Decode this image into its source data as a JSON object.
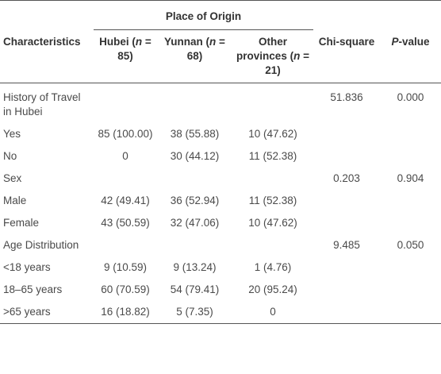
{
  "table": {
    "group_header": "Place of Origin",
    "columns": [
      [
        {
          "text": "Characteristics"
        }
      ],
      [
        {
          "text": "Hubei ("
        },
        {
          "text": "n",
          "italic": true
        },
        {
          "text": " = 85)"
        }
      ],
      [
        {
          "text": "Yunnan ("
        },
        {
          "text": "n",
          "italic": true
        },
        {
          "text": " = 68)"
        }
      ],
      [
        {
          "text": "Other provinces ("
        },
        {
          "text": "n",
          "italic": true
        },
        {
          "text": " = 21)"
        }
      ],
      [
        {
          "text": "Chi-square"
        }
      ],
      [
        {
          "text": "P",
          "italic": true
        },
        {
          "text": "-value"
        }
      ]
    ],
    "rows": [
      [
        "History of Travel in Hubei",
        null,
        null,
        null,
        "51.836",
        "0.000"
      ],
      [
        "Yes",
        "85 (100.00)",
        "38 (55.88)",
        "10 (47.62)",
        null,
        null
      ],
      [
        "No",
        "0",
        "30 (44.12)",
        "11 (52.38)",
        null,
        null
      ],
      [
        "Sex",
        null,
        null,
        null,
        "0.203",
        "0.904"
      ],
      [
        "Male",
        "42 (49.41)",
        "36 (52.94)",
        "11 (52.38)",
        null,
        null
      ],
      [
        "Female",
        "43 (50.59)",
        "32 (47.06)",
        "10 (47.62)",
        null,
        null
      ],
      [
        "Age Distribution",
        null,
        null,
        null,
        "9.485",
        "0.050"
      ],
      [
        "<18 years",
        "9 (10.59)",
        "9 (13.24)",
        "1 (4.76)",
        null,
        null
      ],
      [
        "18–65 years",
        "60 (70.59)",
        "54 (79.41)",
        "20 (95.24)",
        null,
        null
      ],
      [
        ">65 years",
        "16 (18.82)",
        "5 (7.35)",
        "0",
        null,
        null
      ]
    ]
  }
}
